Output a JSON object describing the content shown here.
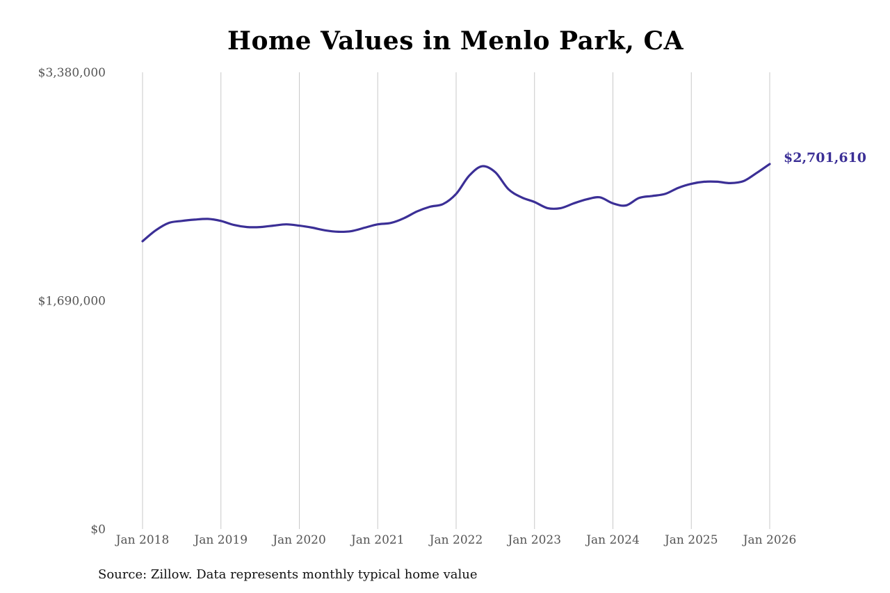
{
  "chart_data": {
    "type": "line",
    "title": "Home Values in Menlo Park, CA",
    "source_note": "Source: Zillow. Data represents monthly typical home value",
    "xlabel": "",
    "ylabel": "",
    "x_ticks": [
      "Jan 2018",
      "Jan 2019",
      "Jan 2020",
      "Jan 2021",
      "Jan 2022",
      "Jan 2023",
      "Jan 2024",
      "Jan 2025",
      "Jan 2026"
    ],
    "y_ticks": [
      "$0",
      "$1,690,000",
      "$3,380,000"
    ],
    "ylim": [
      0,
      3380000
    ],
    "xlim": [
      "2018-01",
      "2026-01"
    ],
    "grid": {
      "vertical": true,
      "horizontal": false
    },
    "end_label": "$2,701,610",
    "colors": {
      "line": "#3b2f96",
      "grid": "#c8c8c8",
      "axis_text": "#555555",
      "end_label": "#3b2f96"
    },
    "series": [
      {
        "x": [
          "2018-01",
          "2018-03",
          "2018-05",
          "2018-07",
          "2018-09",
          "2018-11",
          "2019-01",
          "2019-03",
          "2019-05",
          "2019-07",
          "2019-09",
          "2019-11",
          "2020-01",
          "2020-03",
          "2020-05",
          "2020-07",
          "2020-09",
          "2020-11",
          "2021-01",
          "2021-03",
          "2021-05",
          "2021-07",
          "2021-09",
          "2021-11",
          "2022-01",
          "2022-03",
          "2022-05",
          "2022-07",
          "2022-09",
          "2022-11",
          "2023-01",
          "2023-03",
          "2023-05",
          "2023-07",
          "2023-09",
          "2023-11",
          "2024-01",
          "2024-03",
          "2024-05",
          "2024-07",
          "2024-09",
          "2024-11",
          "2025-01",
          "2025-03",
          "2025-05",
          "2025-07",
          "2025-09",
          "2025-11",
          "2026-01"
        ],
        "values": [
          2130000,
          2210000,
          2265000,
          2280000,
          2290000,
          2295000,
          2280000,
          2250000,
          2235000,
          2235000,
          2245000,
          2255000,
          2245000,
          2230000,
          2210000,
          2200000,
          2205000,
          2230000,
          2255000,
          2265000,
          2300000,
          2350000,
          2385000,
          2405000,
          2480000,
          2615000,
          2685000,
          2640000,
          2515000,
          2455000,
          2420000,
          2375000,
          2375000,
          2410000,
          2440000,
          2455000,
          2410000,
          2395000,
          2450000,
          2465000,
          2480000,
          2525000,
          2555000,
          2570000,
          2570000,
          2560000,
          2575000,
          2635000,
          2701610
        ]
      }
    ]
  }
}
